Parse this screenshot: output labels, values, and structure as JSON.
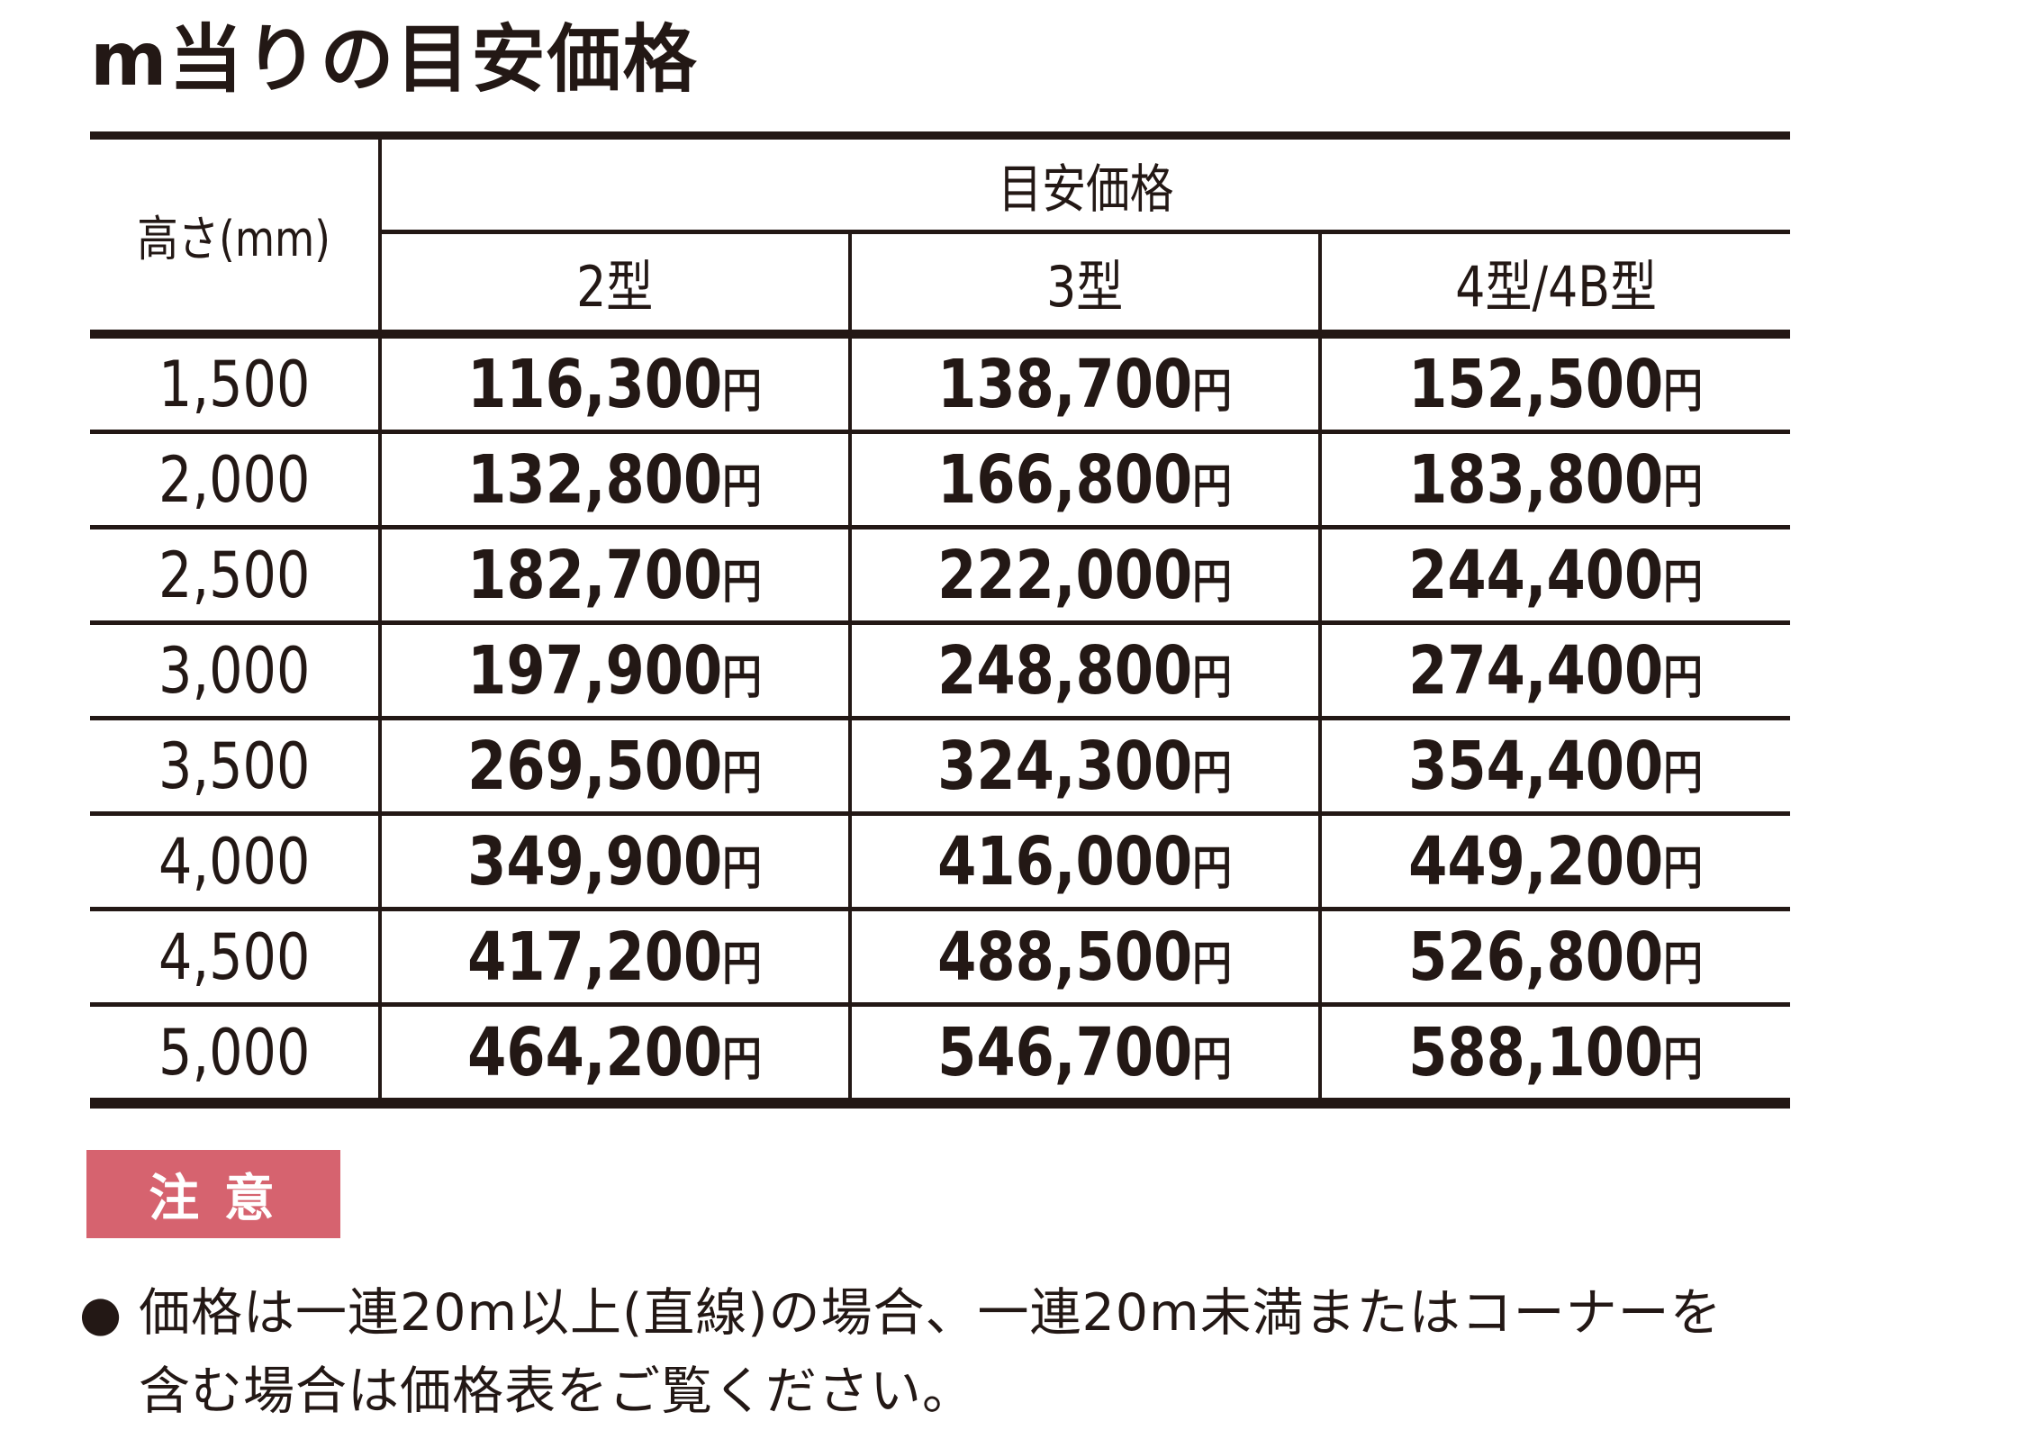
{
  "page": {
    "title": "m当りの目安価格",
    "text_color": "#231815",
    "background_color": "#ffffff"
  },
  "table": {
    "corner_header": "高さ(mm)",
    "group_header": "目安価格",
    "columns": [
      "2型",
      "3型",
      "4型/4B型"
    ],
    "unit_suffix": "円",
    "rows": [
      {
        "height": "1,500",
        "prices": [
          "116,300",
          "138,700",
          "152,500"
        ]
      },
      {
        "height": "2,000",
        "prices": [
          "132,800",
          "166,800",
          "183,800"
        ]
      },
      {
        "height": "2,500",
        "prices": [
          "182,700",
          "222,000",
          "244,400"
        ]
      },
      {
        "height": "3,000",
        "prices": [
          "197,900",
          "248,800",
          "274,400"
        ]
      },
      {
        "height": "3,500",
        "prices": [
          "269,500",
          "324,300",
          "354,400"
        ]
      },
      {
        "height": "4,000",
        "prices": [
          "349,900",
          "416,000",
          "449,200"
        ]
      },
      {
        "height": "4,500",
        "prices": [
          "417,200",
          "488,500",
          "526,800"
        ]
      },
      {
        "height": "5,000",
        "prices": [
          "464,200",
          "546,700",
          "588,100"
        ]
      }
    ]
  },
  "notice": {
    "badge_label": "注 意",
    "badge_color": "#d6636f",
    "badge_text_color": "#ffffff",
    "bullet": "●",
    "line1": "価格は一連20m以上(直線)の場合、一連20m未満またはコーナーを",
    "line2": "含む場合は価格表をご覧ください。"
  }
}
